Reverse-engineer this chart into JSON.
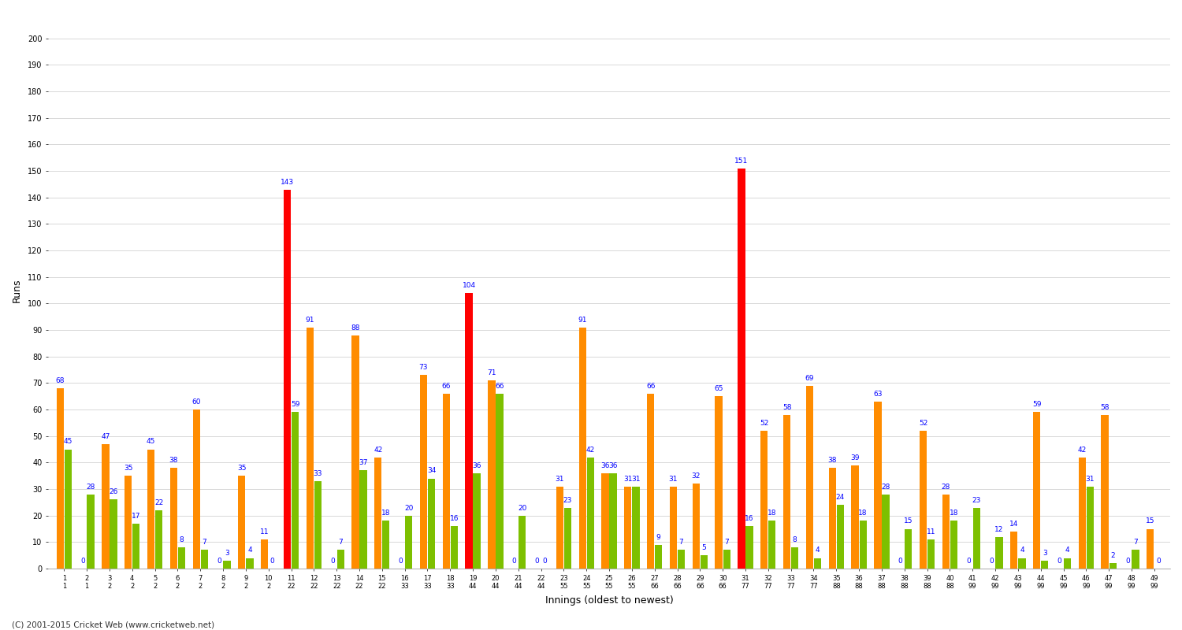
{
  "ylabel": "Runs",
  "xlabel": "Innings (oldest to newest)",
  "footer": "(C) 2001-2015 Cricket Web (www.cricketweb.net)",
  "ylim": [
    0,
    210
  ],
  "yticks": [
    0,
    10,
    20,
    30,
    40,
    50,
    60,
    70,
    80,
    90,
    100,
    110,
    120,
    130,
    140,
    150,
    160,
    170,
    180,
    190,
    200
  ],
  "groups": [
    {
      "xtop": "1",
      "xbot": "1",
      "b1": 68,
      "b2": 45,
      "c1": "orange",
      "show_zero": false
    },
    {
      "xtop": "2",
      "xbot": "1",
      "b1": 0,
      "b2": 28,
      "c1": "orange",
      "show_zero": true
    },
    {
      "xtop": "3",
      "xbot": "2",
      "b1": 47,
      "b2": 26,
      "c1": "orange",
      "show_zero": false
    },
    {
      "xtop": "4",
      "xbot": "2",
      "b1": 35,
      "b2": 17,
      "c1": "orange",
      "show_zero": false
    },
    {
      "xtop": "5",
      "xbot": "2",
      "b1": 45,
      "b2": 22,
      "c1": "orange",
      "show_zero": false
    },
    {
      "xtop": "6",
      "xbot": "2",
      "b1": 38,
      "b2": 8,
      "c1": "orange",
      "show_zero": false
    },
    {
      "xtop": "7",
      "xbot": "2",
      "b1": 60,
      "b2": 7,
      "c1": "orange",
      "show_zero": false
    },
    {
      "xtop": "8",
      "xbot": "2",
      "b1": 0,
      "b2": 3,
      "c1": "orange",
      "show_zero": true
    },
    {
      "xtop": "9",
      "xbot": "2",
      "b1": 35,
      "b2": 4,
      "c1": "orange",
      "show_zero": false
    },
    {
      "xtop": "10",
      "xbot": "2",
      "b1": 11,
      "b2": 0,
      "c1": "orange",
      "show_zero": true
    },
    {
      "xtop": "11",
      "xbot": "22",
      "b1": 143,
      "b2": 59,
      "c1": "red",
      "show_zero": false
    },
    {
      "xtop": "12",
      "xbot": "22",
      "b1": 91,
      "b2": 33,
      "c1": "orange",
      "show_zero": false
    },
    {
      "xtop": "13",
      "xbot": "22",
      "b1": 0,
      "b2": 7,
      "c1": "orange",
      "show_zero": true
    },
    {
      "xtop": "14",
      "xbot": "22",
      "b1": 88,
      "b2": 37,
      "c1": "orange",
      "show_zero": false
    },
    {
      "xtop": "15",
      "xbot": "22",
      "b1": 42,
      "b2": 18,
      "c1": "orange",
      "show_zero": false
    },
    {
      "xtop": "16",
      "xbot": "33",
      "b1": 0,
      "b2": 20,
      "c1": "orange",
      "show_zero": true
    },
    {
      "xtop": "17",
      "xbot": "33",
      "b1": 73,
      "b2": 34,
      "c1": "orange",
      "show_zero": false
    },
    {
      "xtop": "18",
      "xbot": "33",
      "b1": 66,
      "b2": 16,
      "c1": "orange",
      "show_zero": false
    },
    {
      "xtop": "19",
      "xbot": "44",
      "b1": 104,
      "b2": 36,
      "c1": "red",
      "show_zero": false
    },
    {
      "xtop": "20",
      "xbot": "44",
      "b1": 71,
      "b2": 66,
      "c1": "orange",
      "show_zero": false
    },
    {
      "xtop": "21",
      "xbot": "44",
      "b1": 0,
      "b2": 20,
      "c1": "orange",
      "show_zero": true
    },
    {
      "xtop": "22",
      "xbot": "44",
      "b1": 0,
      "b2": 0,
      "c1": "orange",
      "show_zero": true
    },
    {
      "xtop": "23",
      "xbot": "55",
      "b1": 31,
      "b2": 23,
      "c1": "orange",
      "show_zero": false
    },
    {
      "xtop": "24",
      "xbot": "55",
      "b1": 91,
      "b2": 42,
      "c1": "orange",
      "show_zero": false
    },
    {
      "xtop": "25",
      "xbot": "55",
      "b1": 36,
      "b2": 36,
      "c1": "orange",
      "show_zero": false
    },
    {
      "xtop": "26",
      "xbot": "55",
      "b1": 31,
      "b2": 31,
      "c1": "orange",
      "show_zero": false
    },
    {
      "xtop": "27",
      "xbot": "66",
      "b1": 66,
      "b2": 9,
      "c1": "orange",
      "show_zero": false
    },
    {
      "xtop": "28",
      "xbot": "66",
      "b1": 31,
      "b2": 7,
      "c1": "orange",
      "show_zero": false
    },
    {
      "xtop": "29",
      "xbot": "66",
      "b1": 32,
      "b2": 5,
      "c1": "orange",
      "show_zero": false
    },
    {
      "xtop": "30",
      "xbot": "66",
      "b1": 65,
      "b2": 7,
      "c1": "orange",
      "show_zero": false
    },
    {
      "xtop": "31",
      "xbot": "77",
      "b1": 151,
      "b2": 16,
      "c1": "red",
      "show_zero": false
    },
    {
      "xtop": "32",
      "xbot": "77",
      "b1": 52,
      "b2": 18,
      "c1": "orange",
      "show_zero": false
    },
    {
      "xtop": "33",
      "xbot": "77",
      "b1": 58,
      "b2": 8,
      "c1": "orange",
      "show_zero": false
    },
    {
      "xtop": "34",
      "xbot": "77",
      "b1": 69,
      "b2": 4,
      "c1": "orange",
      "show_zero": false
    },
    {
      "xtop": "35",
      "xbot": "88",
      "b1": 38,
      "b2": 24,
      "c1": "orange",
      "show_zero": false
    },
    {
      "xtop": "36",
      "xbot": "88",
      "b1": 39,
      "b2": 18,
      "c1": "orange",
      "show_zero": false
    },
    {
      "xtop": "37",
      "xbot": "88",
      "b1": 63,
      "b2": 28,
      "c1": "orange",
      "show_zero": false
    },
    {
      "xtop": "38",
      "xbot": "88",
      "b1": 0,
      "b2": 15,
      "c1": "orange",
      "show_zero": true
    },
    {
      "xtop": "39",
      "xbot": "88",
      "b1": 52,
      "b2": 11,
      "c1": "orange",
      "show_zero": false
    },
    {
      "xtop": "40",
      "xbot": "88",
      "b1": 28,
      "b2": 18,
      "c1": "orange",
      "show_zero": false
    },
    {
      "xtop": "41",
      "xbot": "99",
      "b1": 0,
      "b2": 23,
      "c1": "orange",
      "show_zero": true
    },
    {
      "xtop": "42",
      "xbot": "99",
      "b1": 0,
      "b2": 12,
      "c1": "orange",
      "show_zero": true
    },
    {
      "xtop": "43",
      "xbot": "99",
      "b1": 14,
      "b2": 4,
      "c1": "orange",
      "show_zero": false
    },
    {
      "xtop": "44",
      "xbot": "99",
      "b1": 59,
      "b2": 3,
      "c1": "orange",
      "show_zero": false
    },
    {
      "xtop": "45",
      "xbot": "99",
      "b1": 0,
      "b2": 4,
      "c1": "orange",
      "show_zero": true
    },
    {
      "xtop": "46",
      "xbot": "99",
      "b1": 42,
      "b2": 31,
      "c1": "orange",
      "show_zero": false
    },
    {
      "xtop": "47",
      "xbot": "99",
      "b1": 58,
      "b2": 2,
      "c1": "orange",
      "show_zero": false
    },
    {
      "xtop": "48",
      "xbot": "99",
      "b1": 0,
      "b2": 7,
      "c1": "orange",
      "show_zero": true
    },
    {
      "xtop": "49",
      "xbot": "99",
      "b1": 15,
      "b2": 0,
      "c1": "orange",
      "show_zero": true
    }
  ],
  "orange_color": "#FF8C00",
  "red_color": "#FF0000",
  "green_color": "#7DC000",
  "bg_color": "#FFFFFF",
  "grid_color": "#D8D8D8",
  "bar_width": 0.35,
  "label_fontsize": 6.5,
  "title_fontsize": 11,
  "axis_fontsize": 9,
  "tick_fontsize": 7
}
